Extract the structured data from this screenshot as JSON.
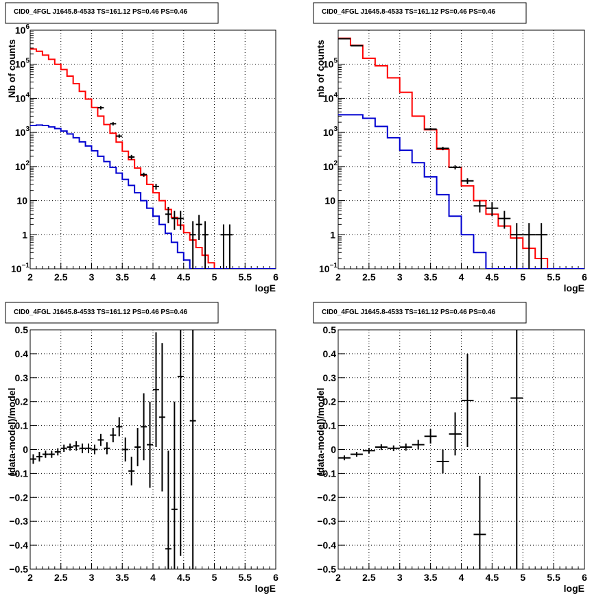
{
  "colors": {
    "data": "#000000",
    "total_model": "#ff0000",
    "source_model": "#0000d0"
  },
  "chart_data": [
    {
      "type": "line",
      "title": "CID0_4FGL J1645.8-4533 TS=161.12 PS=0.46 PS=0.46",
      "xlabel": "logE",
      "ylabel": "Nb of counts",
      "xlim": [
        2,
        6
      ],
      "ylim": [
        0.1,
        1000000
      ],
      "yscale": "log",
      "grid": true,
      "x_ticks": [
        "2",
        "2.5",
        "3",
        "3.5",
        "4",
        "4.5",
        "5",
        "5.5",
        "6"
      ],
      "y_ticks": [
        {
          "value": 0.1,
          "base": "10",
          "exp": "−1"
        },
        {
          "value": 1,
          "base": "1",
          "exp": ""
        },
        {
          "value": 10,
          "base": "10",
          "exp": ""
        },
        {
          "value": 100,
          "base": "10",
          "exp": "2"
        },
        {
          "value": 1000,
          "base": "10",
          "exp": "3"
        },
        {
          "value": 10000,
          "base": "10",
          "exp": "4"
        },
        {
          "value": 100000,
          "base": "10",
          "exp": "5"
        },
        {
          "value": 1000000,
          "base": "10",
          "exp": "6"
        }
      ],
      "bin_edges": [
        2.0,
        2.1,
        2.2,
        2.3,
        2.4,
        2.5,
        2.6,
        2.7,
        2.8,
        2.9,
        3.0,
        3.1,
        3.2,
        3.3,
        3.4,
        3.5,
        3.6,
        3.7,
        3.8,
        3.9,
        4.0,
        4.1,
        4.2,
        4.3,
        4.4,
        4.5,
        4.6,
        4.7,
        4.8,
        4.9,
        5.0,
        5.1,
        5.2,
        5.3,
        5.4,
        5.5,
        5.6,
        5.7,
        5.8,
        5.9,
        6.0
      ],
      "series": [
        {
          "role": "total_model",
          "values": [
            280000,
            240000,
            185000,
            140000,
            100000,
            70000,
            45000,
            27000,
            16000,
            9500,
            5400,
            3000,
            1700,
            950,
            520,
            280,
            160,
            90,
            55,
            30,
            17,
            10,
            5.5,
            3.2,
            1.9,
            1.15,
            0.7,
            0.42,
            0.25,
            0.15,
            0.1,
            0.1,
            0.1,
            0.1,
            0.1,
            0.1,
            0.1,
            0.1,
            0.1,
            0.1
          ]
        },
        {
          "role": "source_model",
          "values": [
            1600,
            1650,
            1600,
            1450,
            1300,
            1100,
            900,
            700,
            530,
            400,
            290,
            200,
            140,
            95,
            64,
            42,
            28,
            17,
            10,
            6,
            3.5,
            2,
            1.1,
            0.6,
            0.3,
            0.18,
            0.1,
            0.1,
            0.1,
            0.1,
            0.1,
            0.1,
            0.1,
            0.1,
            0.1,
            0.1,
            0.1,
            0.1,
            0.1,
            0.1
          ]
        },
        {
          "role": "data",
          "points": [
            {
              "x": 3.15,
              "y": 5300,
              "elo": 4700,
              "ehi": 5900
            },
            {
              "x": 3.35,
              "y": 1800,
              "elo": 1600,
              "ehi": 2000
            },
            {
              "x": 3.45,
              "y": 780,
              "elo": 700,
              "ehi": 880
            },
            {
              "x": 3.65,
              "y": 190,
              "elo": 160,
              "ehi": 220
            },
            {
              "x": 3.85,
              "y": 58,
              "elo": 50,
              "ehi": 66
            },
            {
              "x": 4.05,
              "y": 26,
              "elo": 21,
              "ehi": 31
            },
            {
              "x": 4.25,
              "y": 4,
              "elo": 2.2,
              "ehi": 6.5
            },
            {
              "x": 4.35,
              "y": 3,
              "elo": 1.4,
              "ehi": 5
            },
            {
              "x": 4.45,
              "y": 3,
              "elo": 1.4,
              "ehi": 5
            },
            {
              "x": 4.65,
              "y": 1,
              "elo": 0.1,
              "ehi": 2.5
            },
            {
              "x": 4.75,
              "y": 2,
              "elo": 0.7,
              "ehi": 3.8
            },
            {
              "x": 4.85,
              "y": 1,
              "elo": 0.1,
              "ehi": 2.5
            },
            {
              "x": 5.15,
              "y": 1,
              "elo": 0.1,
              "ehi": 2.0
            },
            {
              "x": 5.25,
              "y": 1,
              "elo": 0.1,
              "ehi": 2.0
            }
          ]
        }
      ]
    },
    {
      "type": "line",
      "title": "CID0_4FGL J1645.8-4533 TS=161.12 PS=0.46 PS=0.46",
      "xlabel": "logE",
      "ylabel": "nb of counts",
      "xlim": [
        2,
        6
      ],
      "ylim": [
        0.1,
        1000000
      ],
      "yscale": "log",
      "grid": true,
      "x_ticks": [
        "2",
        "2.5",
        "3",
        "3.5",
        "4",
        "4.5",
        "5",
        "5.5",
        "6"
      ],
      "y_ticks": [
        {
          "value": 0.1,
          "base": "10",
          "exp": "−1"
        },
        {
          "value": 1,
          "base": "1",
          "exp": ""
        },
        {
          "value": 10,
          "base": "10",
          "exp": ""
        },
        {
          "value": 100,
          "base": "10",
          "exp": "2"
        },
        {
          "value": 1000,
          "base": "10",
          "exp": "3"
        },
        {
          "value": 10000,
          "base": "10",
          "exp": "4"
        },
        {
          "value": 100000,
          "base": "10",
          "exp": "5"
        }
      ],
      "bin_edges": [
        2.0,
        2.2,
        2.4,
        2.6,
        2.8,
        3.0,
        3.2,
        3.4,
        3.6,
        3.8,
        4.0,
        4.2,
        4.4,
        4.6,
        4.8,
        5.0,
        5.2,
        5.4,
        5.6,
        5.8,
        6.0
      ],
      "series": [
        {
          "role": "total_model",
          "values": [
            580000,
            360000,
            150000,
            90000,
            40000,
            15000,
            3000,
            1200,
            320,
            95,
            27,
            10,
            4,
            1.8,
            0.8,
            0.4,
            0.2,
            0.1,
            0.1,
            0.1
          ]
        },
        {
          "role": "source_model",
          "values": [
            3300,
            3300,
            2600,
            1500,
            700,
            300,
            130,
            50,
            15,
            3.5,
            1,
            0.3,
            0.1,
            0.1,
            0.1,
            0.1,
            0.1,
            0.1,
            0.1,
            0.1
          ]
        },
        {
          "role": "data",
          "points": [
            {
              "x": 2.1,
              "y": 560000,
              "elo": 555000,
              "ehi": 566000
            },
            {
              "x": 2.3,
              "y": 350000,
              "elo": 346000,
              "ehi": 354000
            },
            {
              "x": 3.5,
              "y": 1250,
              "elo": 1150,
              "ehi": 1350
            },
            {
              "x": 3.7,
              "y": 340,
              "elo": 300,
              "ehi": 380
            },
            {
              "x": 3.9,
              "y": 95,
              "elo": 82,
              "ehi": 108
            },
            {
              "x": 4.1,
              "y": 38,
              "elo": 31,
              "ehi": 45
            },
            {
              "x": 4.3,
              "y": 7,
              "elo": 4.5,
              "ehi": 10
            },
            {
              "x": 4.5,
              "y": 6,
              "elo": 3.5,
              "ehi": 9
            },
            {
              "x": 4.7,
              "y": 3,
              "elo": 1.5,
              "ehi": 5
            },
            {
              "x": 4.9,
              "y": 1,
              "elo": 0.1,
              "ehi": 2.2
            },
            {
              "x": 5.1,
              "y": 1,
              "elo": 0.1,
              "ehi": 2.2
            },
            {
              "x": 5.3,
              "y": 1,
              "elo": 0.1,
              "ehi": 2.2
            }
          ]
        }
      ]
    },
    {
      "type": "scatter",
      "title": "CID0_4FGL J1645.8-4533 TS=161.12 PS=0.46 PS=0.46",
      "xlabel": "logE",
      "ylabel": "(data-model)/model",
      "xlim": [
        2,
        6
      ],
      "ylim": [
        -0.5,
        0.5
      ],
      "yscale": "linear",
      "grid": true,
      "x_ticks": [
        "2",
        "2.5",
        "3",
        "3.5",
        "4",
        "4.5",
        "5",
        "5.5",
        "6"
      ],
      "y_ticks": [
        "−0.5",
        "−0.4",
        "−0.3",
        "−0.2",
        "−0.1",
        "0",
        "0.1",
        "0.2",
        "0.3",
        "0.4",
        "0.5"
      ],
      "y_tick_values": [
        -0.5,
        -0.4,
        -0.3,
        -0.2,
        -0.1,
        0,
        0.1,
        0.2,
        0.3,
        0.4,
        0.5
      ],
      "half_width": 0.05,
      "series": [
        {
          "role": "data",
          "points": [
            {
              "x": 2.05,
              "y": -0.04,
              "err": 0.02
            },
            {
              "x": 2.15,
              "y": -0.03,
              "err": 0.02
            },
            {
              "x": 2.25,
              "y": -0.02,
              "err": 0.015
            },
            {
              "x": 2.35,
              "y": -0.02,
              "err": 0.015
            },
            {
              "x": 2.45,
              "y": -0.01,
              "err": 0.015
            },
            {
              "x": 2.55,
              "y": 0.005,
              "err": 0.015
            },
            {
              "x": 2.65,
              "y": 0.01,
              "err": 0.015
            },
            {
              "x": 2.75,
              "y": 0.015,
              "err": 0.02
            },
            {
              "x": 2.85,
              "y": 0.005,
              "err": 0.02
            },
            {
              "x": 2.95,
              "y": 0.005,
              "err": 0.02
            },
            {
              "x": 3.05,
              "y": 0.0,
              "err": 0.02
            },
            {
              "x": 3.15,
              "y": 0.04,
              "err": 0.025
            },
            {
              "x": 3.25,
              "y": 0.005,
              "err": 0.025
            },
            {
              "x": 3.35,
              "y": 0.06,
              "err": 0.03
            },
            {
              "x": 3.45,
              "y": 0.095,
              "err": 0.04
            },
            {
              "x": 3.55,
              "y": 0.0,
              "err": 0.05
            },
            {
              "x": 3.65,
              "y": -0.09,
              "err": 0.06
            },
            {
              "x": 3.75,
              "y": 0.01,
              "err": 0.08
            },
            {
              "x": 3.85,
              "y": 0.095,
              "err": 0.14
            },
            {
              "x": 3.95,
              "y": 0.02,
              "err": 0.18
            },
            {
              "x": 4.05,
              "y": 0.25,
              "err": 0.24
            },
            {
              "x": 4.15,
              "y": 0.135,
              "err": 0.31
            },
            {
              "x": 4.25,
              "y": -0.415,
              "err": 0.41
            },
            {
              "x": 4.35,
              "y": -0.25,
              "err": 0.45
            },
            {
              "x": 4.45,
              "y": 0.305,
              "err": 0.75
            },
            {
              "x": 4.65,
              "y": 0.12,
              "err": 0.9
            }
          ]
        }
      ]
    },
    {
      "type": "scatter",
      "title": "CID0_4FGL J1645.8-4533 TS=161.12 PS=0.46 PS=0.46",
      "xlabel": "logE",
      "ylabel": "(data-model)/model",
      "xlim": [
        2,
        6
      ],
      "ylim": [
        -0.5,
        0.5
      ],
      "yscale": "linear",
      "grid": true,
      "x_ticks": [
        "2",
        "2.5",
        "3",
        "3.5",
        "4",
        "4.5",
        "5",
        "5.5",
        "6"
      ],
      "y_ticks": [
        "−0.5",
        "−0.4",
        "−0.3",
        "−0.2",
        "−0.1",
        "0",
        "0.1",
        "0.2",
        "0.3",
        "0.4",
        "0.5"
      ],
      "y_tick_values": [
        -0.5,
        -0.4,
        -0.3,
        -0.2,
        -0.1,
        0,
        0.1,
        0.2,
        0.3,
        0.4,
        0.5
      ],
      "half_width": 0.1,
      "series": [
        {
          "role": "data",
          "points": [
            {
              "x": 2.1,
              "y": -0.035,
              "err": 0.01
            },
            {
              "x": 2.3,
              "y": -0.02,
              "err": 0.01
            },
            {
              "x": 2.5,
              "y": -0.005,
              "err": 0.012
            },
            {
              "x": 2.7,
              "y": 0.01,
              "err": 0.012
            },
            {
              "x": 2.9,
              "y": 0.005,
              "err": 0.012
            },
            {
              "x": 3.1,
              "y": 0.01,
              "err": 0.015
            },
            {
              "x": 3.3,
              "y": 0.02,
              "err": 0.02
            },
            {
              "x": 3.5,
              "y": 0.055,
              "err": 0.03
            },
            {
              "x": 3.7,
              "y": -0.05,
              "err": 0.05
            },
            {
              "x": 3.9,
              "y": 0.065,
              "err": 0.09
            },
            {
              "x": 4.1,
              "y": 0.205,
              "err": 0.195
            },
            {
              "x": 4.3,
              "y": -0.355,
              "err": 0.245
            },
            {
              "x": 4.9,
              "y": 0.215,
              "err": 0.8
            }
          ]
        }
      ]
    }
  ]
}
